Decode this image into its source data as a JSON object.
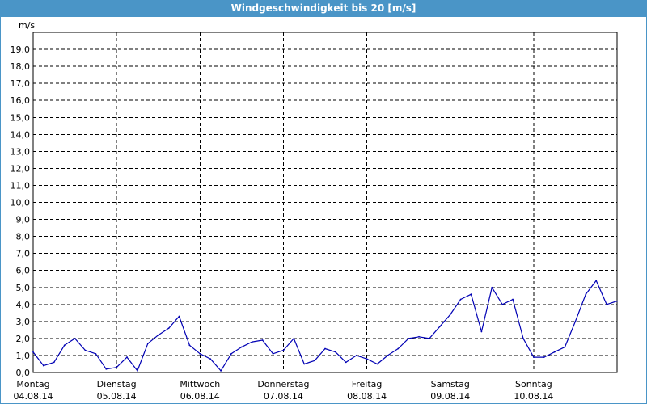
{
  "title": "Windgeschwindigkeit bis 20 [m/s]",
  "colors": {
    "titlebar": "#4a95c7",
    "series": "#0000b4",
    "grid": "#000000"
  },
  "chart_data": {
    "type": "line",
    "title": "Windgeschwindigkeit bis 20 [m/s]",
    "ylabel": "m/s",
    "xlabel": "",
    "ylim": [
      0,
      20
    ],
    "yticks": [
      "0,0",
      "1,0",
      "2,0",
      "3,0",
      "4,0",
      "5,0",
      "6,0",
      "7,0",
      "8,0",
      "9,0",
      "10,0",
      "11,0",
      "12,0",
      "13,0",
      "14,0",
      "15,0",
      "16,0",
      "17,0",
      "18,0",
      "19,0"
    ],
    "grid": true,
    "days": [
      {
        "day": "Montag",
        "date": "04.08.14"
      },
      {
        "day": "Dienstag",
        "date": "05.08.14"
      },
      {
        "day": "Mittwoch",
        "date": "06.08.14"
      },
      {
        "day": "Donnerstag",
        "date": "07.08.14"
      },
      {
        "day": "Freitag",
        "date": "08.08.14"
      },
      {
        "day": "Samstag",
        "date": "09.08.14"
      },
      {
        "day": "Sonntag",
        "date": "10.08.14"
      }
    ],
    "x_unit": "hours since Montag 04.08.14 00:00",
    "x_range": [
      0,
      168
    ],
    "series": [
      {
        "name": "",
        "x": [
          0,
          3,
          6,
          9,
          12,
          15,
          18,
          21,
          24,
          27,
          30,
          33,
          36,
          39,
          42,
          45,
          48,
          51,
          54,
          57,
          60,
          63,
          66,
          69,
          72,
          75,
          78,
          81,
          84,
          87,
          90,
          93,
          96,
          99,
          102,
          105,
          108,
          111,
          114,
          117,
          120,
          123,
          126,
          129,
          132,
          135,
          138,
          141,
          144,
          147,
          150,
          153,
          156,
          159,
          162,
          165,
          168
        ],
        "values": [
          1.2,
          0.4,
          0.6,
          1.6,
          2.0,
          1.3,
          1.1,
          0.2,
          0.3,
          0.9,
          0.1,
          1.7,
          2.2,
          2.6,
          3.3,
          1.6,
          1.1,
          0.8,
          0.1,
          1.1,
          1.5,
          1.8,
          1.9,
          1.1,
          1.3,
          2.0,
          0.5,
          0.7,
          1.4,
          1.2,
          0.6,
          1.0,
          0.8,
          0.5,
          1.0,
          1.4,
          2.0,
          2.1,
          2.0,
          2.7,
          3.4,
          4.3,
          4.6,
          2.4,
          5.0,
          4.0,
          4.3,
          2.0,
          0.9,
          0.9,
          1.2,
          1.5,
          3.0,
          4.6,
          5.4,
          4.0,
          4.2
        ]
      }
    ]
  }
}
